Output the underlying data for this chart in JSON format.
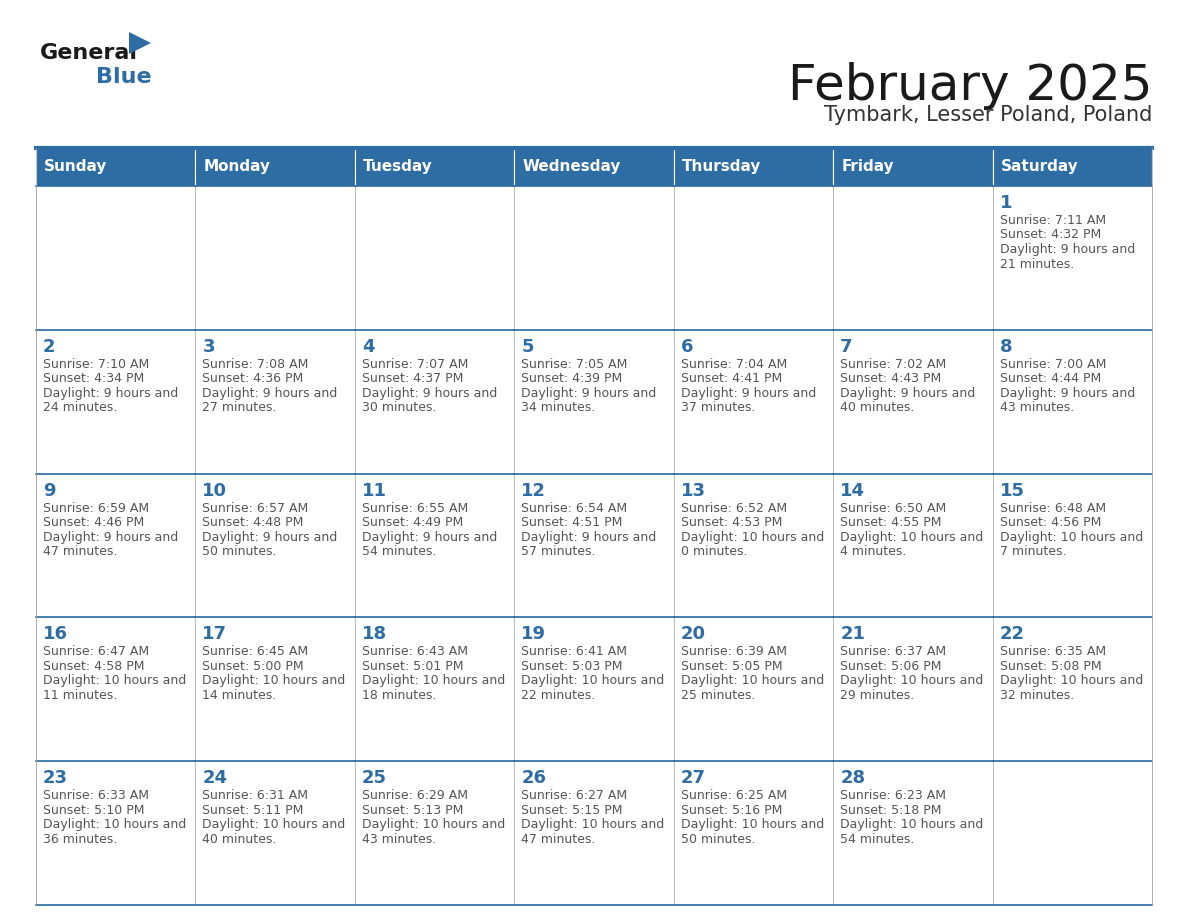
{
  "title": "February 2025",
  "subtitle": "Tymbark, Lesser Poland, Poland",
  "header_bg": "#2E6DA4",
  "header_text": "#FFFFFF",
  "cell_bg": "#FFFFFF",
  "border_color": "#2E6DA4",
  "cell_border_color": "#AAAAAA",
  "day_number_color": "#2E6DA4",
  "info_text_color": "#555555",
  "days_of_week": [
    "Sunday",
    "Monday",
    "Tuesday",
    "Wednesday",
    "Thursday",
    "Friday",
    "Saturday"
  ],
  "calendar_data": [
    [
      null,
      null,
      null,
      null,
      null,
      null,
      {
        "day": 1,
        "sunrise": "7:11 AM",
        "sunset": "4:32 PM",
        "daylight": "9 hours and 21 minutes."
      }
    ],
    [
      {
        "day": 2,
        "sunrise": "7:10 AM",
        "sunset": "4:34 PM",
        "daylight": "9 hours and 24 minutes."
      },
      {
        "day": 3,
        "sunrise": "7:08 AM",
        "sunset": "4:36 PM",
        "daylight": "9 hours and 27 minutes."
      },
      {
        "day": 4,
        "sunrise": "7:07 AM",
        "sunset": "4:37 PM",
        "daylight": "9 hours and 30 minutes."
      },
      {
        "day": 5,
        "sunrise": "7:05 AM",
        "sunset": "4:39 PM",
        "daylight": "9 hours and 34 minutes."
      },
      {
        "day": 6,
        "sunrise": "7:04 AM",
        "sunset": "4:41 PM",
        "daylight": "9 hours and 37 minutes."
      },
      {
        "day": 7,
        "sunrise": "7:02 AM",
        "sunset": "4:43 PM",
        "daylight": "9 hours and 40 minutes."
      },
      {
        "day": 8,
        "sunrise": "7:00 AM",
        "sunset": "4:44 PM",
        "daylight": "9 hours and 43 minutes."
      }
    ],
    [
      {
        "day": 9,
        "sunrise": "6:59 AM",
        "sunset": "4:46 PM",
        "daylight": "9 hours and 47 minutes."
      },
      {
        "day": 10,
        "sunrise": "6:57 AM",
        "sunset": "4:48 PM",
        "daylight": "9 hours and 50 minutes."
      },
      {
        "day": 11,
        "sunrise": "6:55 AM",
        "sunset": "4:49 PM",
        "daylight": "9 hours and 54 minutes."
      },
      {
        "day": 12,
        "sunrise": "6:54 AM",
        "sunset": "4:51 PM",
        "daylight": "9 hours and 57 minutes."
      },
      {
        "day": 13,
        "sunrise": "6:52 AM",
        "sunset": "4:53 PM",
        "daylight": "10 hours and 0 minutes."
      },
      {
        "day": 14,
        "sunrise": "6:50 AM",
        "sunset": "4:55 PM",
        "daylight": "10 hours and 4 minutes."
      },
      {
        "day": 15,
        "sunrise": "6:48 AM",
        "sunset": "4:56 PM",
        "daylight": "10 hours and 7 minutes."
      }
    ],
    [
      {
        "day": 16,
        "sunrise": "6:47 AM",
        "sunset": "4:58 PM",
        "daylight": "10 hours and 11 minutes."
      },
      {
        "day": 17,
        "sunrise": "6:45 AM",
        "sunset": "5:00 PM",
        "daylight": "10 hours and 14 minutes."
      },
      {
        "day": 18,
        "sunrise": "6:43 AM",
        "sunset": "5:01 PM",
        "daylight": "10 hours and 18 minutes."
      },
      {
        "day": 19,
        "sunrise": "6:41 AM",
        "sunset": "5:03 PM",
        "daylight": "10 hours and 22 minutes."
      },
      {
        "day": 20,
        "sunrise": "6:39 AM",
        "sunset": "5:05 PM",
        "daylight": "10 hours and 25 minutes."
      },
      {
        "day": 21,
        "sunrise": "6:37 AM",
        "sunset": "5:06 PM",
        "daylight": "10 hours and 29 minutes."
      },
      {
        "day": 22,
        "sunrise": "6:35 AM",
        "sunset": "5:08 PM",
        "daylight": "10 hours and 32 minutes."
      }
    ],
    [
      {
        "day": 23,
        "sunrise": "6:33 AM",
        "sunset": "5:10 PM",
        "daylight": "10 hours and 36 minutes."
      },
      {
        "day": 24,
        "sunrise": "6:31 AM",
        "sunset": "5:11 PM",
        "daylight": "10 hours and 40 minutes."
      },
      {
        "day": 25,
        "sunrise": "6:29 AM",
        "sunset": "5:13 PM",
        "daylight": "10 hours and 43 minutes."
      },
      {
        "day": 26,
        "sunrise": "6:27 AM",
        "sunset": "5:15 PM",
        "daylight": "10 hours and 47 minutes."
      },
      {
        "day": 27,
        "sunrise": "6:25 AM",
        "sunset": "5:16 PM",
        "daylight": "10 hours and 50 minutes."
      },
      {
        "day": 28,
        "sunrise": "6:23 AM",
        "sunset": "5:18 PM",
        "daylight": "10 hours and 54 minutes."
      },
      null
    ]
  ]
}
